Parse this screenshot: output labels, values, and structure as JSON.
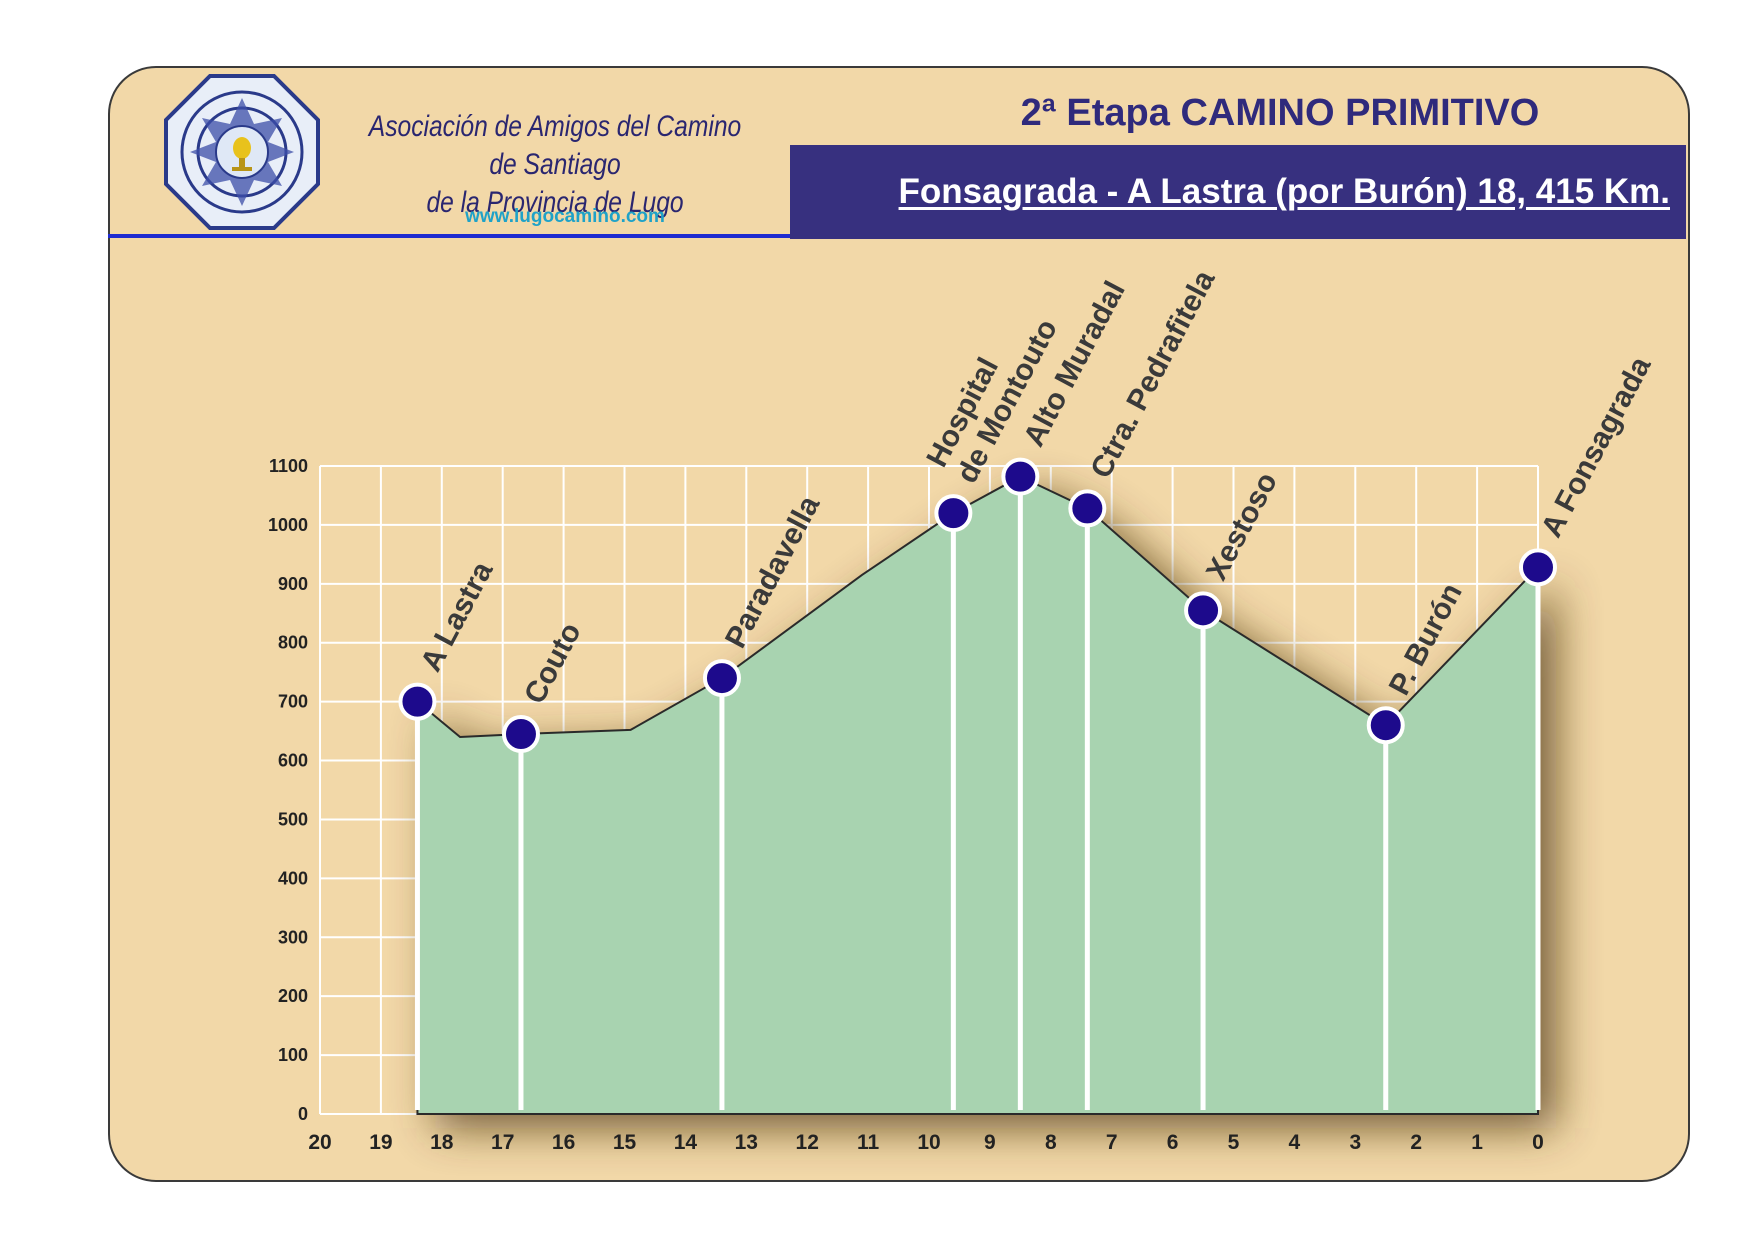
{
  "header": {
    "association_line1": "Asociación de Amigos del Camino de Santiago",
    "association_line2": "de la Provincia de Lugo",
    "website": "www.lugocamino.com",
    "stage_title": "2ª Etapa CAMINO PRIMITIVO",
    "route": "Fonsagrada - A Lastra (por Burón) 18, 415 Km."
  },
  "colors": {
    "background": "#f2d8a8",
    "profile_fill": "#a8d3b0",
    "header_box": "#37307f",
    "marker": "#1d0a8c"
  },
  "chart_data": {
    "type": "area",
    "title": "",
    "xlabel": "",
    "ylabel": "",
    "xlim": [
      20,
      0
    ],
    "ylim": [
      0,
      1100
    ],
    "x_reversed": true,
    "grid": true,
    "yticks": [
      0,
      100,
      200,
      300,
      400,
      500,
      600,
      700,
      800,
      900,
      1000,
      1100
    ],
    "xticks": [
      20,
      19,
      18,
      17,
      16,
      15,
      14,
      13,
      12,
      11,
      10,
      9,
      8,
      7,
      6,
      5,
      4,
      3,
      2,
      1,
      0
    ],
    "profile": [
      {
        "x": 18.4,
        "y": 700
      },
      {
        "x": 17.7,
        "y": 640
      },
      {
        "x": 16.7,
        "y": 645
      },
      {
        "x": 14.9,
        "y": 652
      },
      {
        "x": 13.4,
        "y": 740
      },
      {
        "x": 11.1,
        "y": 915
      },
      {
        "x": 9.6,
        "y": 1020
      },
      {
        "x": 8.5,
        "y": 1082
      },
      {
        "x": 7.4,
        "y": 1028
      },
      {
        "x": 5.5,
        "y": 855
      },
      {
        "x": 2.5,
        "y": 660
      },
      {
        "x": 0,
        "y": 928
      }
    ],
    "points": [
      {
        "name": "A Lastra",
        "x": 18.4,
        "y": 700
      },
      {
        "name": "Couto",
        "x": 16.7,
        "y": 645
      },
      {
        "name": "Paradavella",
        "x": 13.4,
        "y": 740
      },
      {
        "name": "Hospital de Montouto",
        "x": 9.6,
        "y": 1020
      },
      {
        "name": "Alto Muradal",
        "x": 8.5,
        "y": 1082
      },
      {
        "name": "Ctra. Pedrafitela",
        "x": 7.4,
        "y": 1028
      },
      {
        "name": "Xestoso",
        "x": 5.5,
        "y": 855
      },
      {
        "name": "P. Burón",
        "x": 2.5,
        "y": 660
      },
      {
        "name": "A Fonsagrada",
        "x": 0,
        "y": 928
      }
    ]
  }
}
